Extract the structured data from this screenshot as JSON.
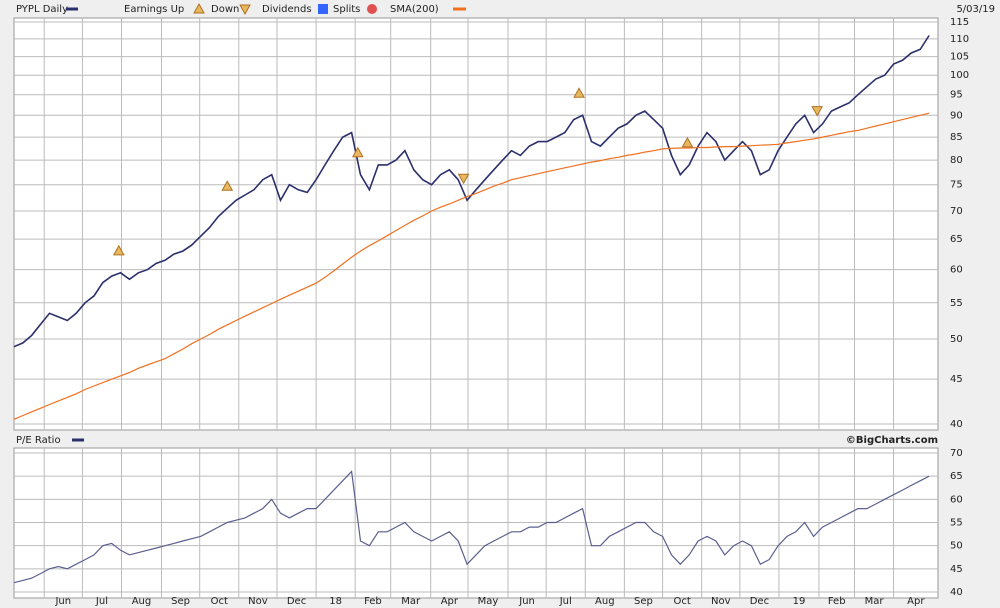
{
  "chart_data": [
    {
      "type": "line",
      "title": "PYPL Daily",
      "date_label": "5/03/19",
      "log_scale": true,
      "grid": true,
      "x": [
        0,
        1,
        2,
        3,
        4,
        5,
        6,
        7,
        8,
        9,
        10,
        11,
        12,
        13,
        14,
        15,
        16,
        17,
        18,
        19,
        20,
        21,
        22,
        23,
        24,
        25,
        26,
        27,
        28,
        29,
        30,
        31,
        32,
        33,
        34,
        35,
        36,
        37,
        38,
        39,
        40,
        41,
        42,
        43,
        44,
        45,
        46,
        47,
        48,
        49,
        50,
        51,
        52,
        53,
        54,
        55,
        56,
        57,
        58,
        59,
        60,
        61,
        62,
        63,
        64,
        65,
        66,
        67,
        68,
        69,
        70,
        71,
        72,
        73,
        74,
        75,
        76,
        77,
        78,
        79,
        80,
        81,
        82,
        83,
        84,
        85,
        86,
        87,
        88,
        89,
        90,
        91,
        92,
        93,
        94,
        95,
        96,
        97,
        98,
        99,
        100,
        101,
        102,
        103
      ],
      "xlim": [
        0,
        104
      ],
      "ylim": [
        40,
        115
      ],
      "yticks": [
        40,
        45,
        50,
        55,
        60,
        65,
        70,
        75,
        80,
        85,
        90,
        95,
        100,
        105,
        110,
        115
      ],
      "series": [
        {
          "name": "PYPL Daily",
          "color": "#2b2f6b",
          "values": [
            49,
            49.5,
            50.5,
            52,
            53.5,
            53,
            52.5,
            53.5,
            55,
            56,
            58,
            59,
            59.5,
            58.5,
            59.5,
            60,
            61,
            61.5,
            62.5,
            63,
            64,
            65.5,
            67,
            69,
            70.5,
            72,
            73,
            74,
            76,
            77,
            72,
            75,
            74,
            73.5,
            76,
            79,
            82,
            85,
            86,
            77,
            74,
            79,
            79,
            80,
            82,
            78,
            76,
            75,
            77,
            78,
            76,
            72,
            74,
            76,
            78,
            80,
            82,
            81,
            83,
            84,
            84,
            85,
            86,
            89,
            90,
            84,
            83,
            85,
            87,
            88,
            90,
            91,
            89,
            87,
            81,
            77,
            79,
            83,
            86,
            84,
            80,
            82,
            84,
            82,
            77,
            78,
            82,
            85,
            88,
            90,
            86,
            88,
            91,
            92,
            93,
            95,
            97,
            99,
            100,
            103,
            104,
            106,
            107,
            111
          ]
        },
        {
          "name": "SMA(200)",
          "color": "#f07020",
          "values": [
            40.5,
            40.9,
            41.3,
            41.7,
            42.1,
            42.5,
            42.9,
            43.3,
            43.8,
            44.2,
            44.6,
            45.0,
            45.4,
            45.8,
            46.3,
            46.7,
            47.1,
            47.5,
            48.1,
            48.7,
            49.4,
            50.0,
            50.6,
            51.3,
            51.9,
            52.5,
            53.1,
            53.7,
            54.3,
            54.9,
            55.5,
            56.1,
            56.7,
            57.3,
            57.9,
            58.8,
            59.8,
            60.9,
            62.0,
            63.0,
            63.9,
            64.7,
            65.6,
            66.5,
            67.4,
            68.3,
            69.1,
            70.0,
            70.7,
            71.3,
            72.0,
            72.7,
            73.3,
            74.0,
            74.7,
            75.3,
            76.0,
            76.4,
            76.8,
            77.2,
            77.6,
            78.0,
            78.4,
            78.8,
            79.2,
            79.6,
            79.9,
            80.3,
            80.6,
            81.0,
            81.3,
            81.7,
            82.0,
            82.4,
            82.5,
            82.6,
            82.6,
            82.7,
            82.7,
            82.8,
            82.9,
            82.9,
            83.0,
            83.1,
            83.2,
            83.3,
            83.4,
            83.7,
            84.0,
            84.3,
            84.6,
            85.0,
            85.4,
            85.8,
            86.2,
            86.5,
            87.0,
            87.5,
            88.0,
            88.5,
            89.0,
            89.5,
            90.0,
            90.5
          ]
        }
      ],
      "markers": {
        "earnings_up": {
          "name": "Earnings Up",
          "color": "#e8b860",
          "x": [
            11.8,
            24,
            38.7,
            63.6,
            75.8
          ]
        },
        "earnings_down": {
          "name": "Down",
          "color": "#e8b860",
          "x": [
            50.6,
            90.4
          ]
        },
        "dividends": {
          "name": "Dividends",
          "color": "#3366ff"
        },
        "splits": {
          "name": "Splits",
          "color": "#e05050"
        }
      }
    },
    {
      "type": "line",
      "title": "P/E Ratio",
      "credit": "©BigCharts.com",
      "grid": true,
      "xlim": [
        0,
        104
      ],
      "xticks": [
        {
          "value": 3.4,
          "label": "Jun"
        },
        {
          "value": 7.7,
          "label": "Jul"
        },
        {
          "value": 12.1,
          "label": "Aug"
        },
        {
          "value": 16.6,
          "label": "Sep"
        },
        {
          "value": 20.9,
          "label": "Oct"
        },
        {
          "value": 25.3,
          "label": "Nov"
        },
        {
          "value": 29.6,
          "label": "Dec"
        },
        {
          "value": 34.0,
          "label": "18"
        },
        {
          "value": 38.4,
          "label": "Feb"
        },
        {
          "value": 42.4,
          "label": "Mar"
        },
        {
          "value": 46.9,
          "label": "Apr"
        },
        {
          "value": 51.1,
          "label": "May"
        },
        {
          "value": 55.6,
          "label": "Jun"
        },
        {
          "value": 59.9,
          "label": "Jul"
        },
        {
          "value": 64.3,
          "label": "Aug"
        },
        {
          "value": 68.7,
          "label": "Sep"
        },
        {
          "value": 73.0,
          "label": "Oct"
        },
        {
          "value": 77.4,
          "label": "Nov"
        },
        {
          "value": 81.7,
          "label": "Dec"
        },
        {
          "value": 86.1,
          "label": "19"
        },
        {
          "value": 90.6,
          "label": "Feb"
        },
        {
          "value": 94.6,
          "label": "Mar"
        },
        {
          "value": 99.0,
          "label": "Apr"
        }
      ],
      "ylim": [
        40,
        70
      ],
      "yticks": [
        40,
        45,
        50,
        55,
        60,
        65,
        70
      ],
      "series": [
        {
          "name": "P/E Ratio",
          "color": "#5a5f8f",
          "values": [
            42,
            42.5,
            43,
            44,
            45,
            45.5,
            45,
            46,
            47,
            48,
            50,
            50.5,
            49,
            48,
            48.5,
            49,
            49.5,
            50,
            50.5,
            51,
            51.5,
            52,
            53,
            54,
            55,
            55.5,
            56,
            57,
            58,
            60,
            57,
            56,
            57,
            58,
            58,
            60,
            62,
            64,
            66,
            51,
            50,
            53,
            53,
            54,
            55,
            53,
            52,
            51,
            52,
            53,
            51,
            46,
            48,
            50,
            51,
            52,
            53,
            53,
            54,
            54,
            55,
            55,
            56,
            57,
            58,
            50,
            50,
            52,
            53,
            54,
            55,
            55,
            53,
            52,
            48,
            46,
            48,
            51,
            52,
            51,
            48,
            50,
            51,
            50,
            46,
            47,
            50,
            52,
            53,
            55,
            52,
            54,
            55,
            56,
            57,
            58,
            58,
            59,
            60,
            61,
            62,
            63,
            64,
            65
          ]
        }
      ]
    }
  ]
}
